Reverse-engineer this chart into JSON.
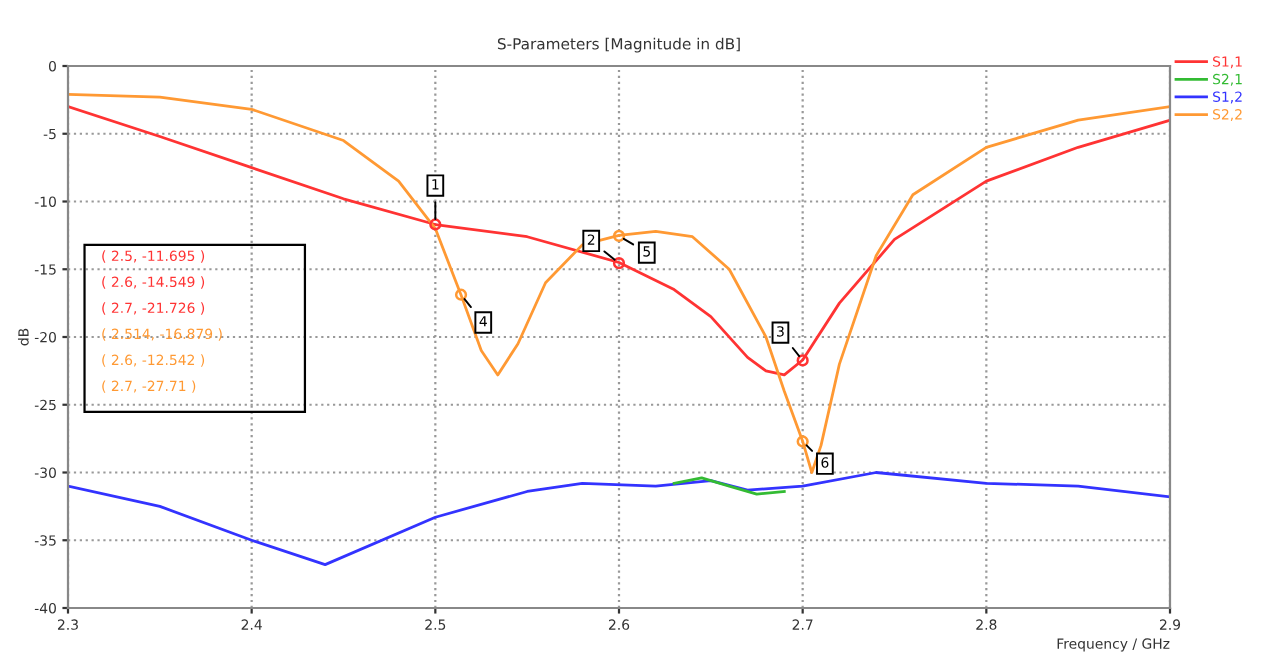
{
  "chart_data": {
    "type": "line",
    "title": "S-Parameters [Magnitude in dB]",
    "xlabel": "Frequency / GHz",
    "ylabel": "dB",
    "xlim": [
      2.3,
      2.9
    ],
    "xticks": [
      2.3,
      2.4,
      2.5,
      2.6,
      2.7,
      2.8,
      2.9
    ],
    "ylim": [
      -40,
      0
    ],
    "yticks": [
      -40,
      -35,
      -30,
      -25,
      -20,
      -15,
      -10,
      -5,
      0
    ],
    "grid": true,
    "legend": "top right",
    "line_style": "solid",
    "marker": "none",
    "series": [
      {
        "name": "S1,1",
        "color": "#ff3333",
        "x": [
          2.3,
          2.35,
          2.4,
          2.45,
          2.5,
          2.55,
          2.6,
          2.63,
          2.65,
          2.67,
          2.68,
          2.69,
          2.7,
          2.72,
          2.75,
          2.8,
          2.85,
          2.9
        ],
        "values": [
          -3,
          -5.2,
          -7.5,
          -9.8,
          -11.7,
          -12.6,
          -14.5,
          -16.5,
          -18.5,
          -21.5,
          -22.5,
          -22.8,
          -21.7,
          -17.5,
          -12.8,
          -8.5,
          -6,
          -4
        ]
      },
      {
        "name": "S2,1",
        "color": "#33bb33",
        "x": [
          2.63,
          2.645,
          2.66,
          2.675,
          2.69
        ],
        "values": [
          -30.8,
          -30.4,
          -31.0,
          -31.6,
          -31.4
        ]
      },
      {
        "name": "S1,2",
        "color": "#3333ff",
        "x": [
          2.3,
          2.35,
          2.4,
          2.44,
          2.5,
          2.55,
          2.58,
          2.62,
          2.65,
          2.67,
          2.7,
          2.74,
          2.8,
          2.85,
          2.9
        ],
        "values": [
          -31,
          -32.5,
          -35,
          -36.8,
          -33.3,
          -31.4,
          -30.8,
          -31,
          -30.6,
          -31.3,
          -31,
          -30,
          -30.8,
          -31,
          -31.8
        ]
      },
      {
        "name": "S2,2",
        "color": "#ff9933",
        "x": [
          2.3,
          2.35,
          2.4,
          2.45,
          2.48,
          2.5,
          2.514,
          2.525,
          2.534,
          2.545,
          2.56,
          2.58,
          2.6,
          2.62,
          2.64,
          2.66,
          2.68,
          2.69,
          2.7,
          2.705,
          2.71,
          2.72,
          2.74,
          2.76,
          2.8,
          2.85,
          2.9
        ],
        "values": [
          -2.1,
          -2.3,
          -3.2,
          -5.5,
          -8.5,
          -12,
          -16.9,
          -21,
          -22.8,
          -20.5,
          -16,
          -13.2,
          -12.5,
          -12.2,
          -12.6,
          -15,
          -20,
          -24,
          -27.7,
          -30,
          -28,
          -22,
          -14,
          -9.5,
          -6,
          -4,
          -3
        ]
      }
    ],
    "annotations": [
      {
        "text": "1",
        "x": 2.5,
        "y": -11.695
      },
      {
        "text": "2",
        "x": 2.6,
        "y": -14.549
      },
      {
        "text": "3",
        "x": 2.7,
        "y": -21.726
      },
      {
        "text": "4",
        "x": 2.514,
        "y": -16.879
      },
      {
        "text": "5",
        "x": 2.6,
        "y": -12.542
      },
      {
        "text": "6",
        "x": 2.7,
        "y": -27.71
      },
      "( 2.5, -11.695 )",
      "( 2.6, -14.549 )",
      "( 2.7, -21.726 )",
      "( 2.514, -16.879 )",
      "( 2.6, -12.542 )",
      "( 2.7, -27.71 )"
    ]
  }
}
